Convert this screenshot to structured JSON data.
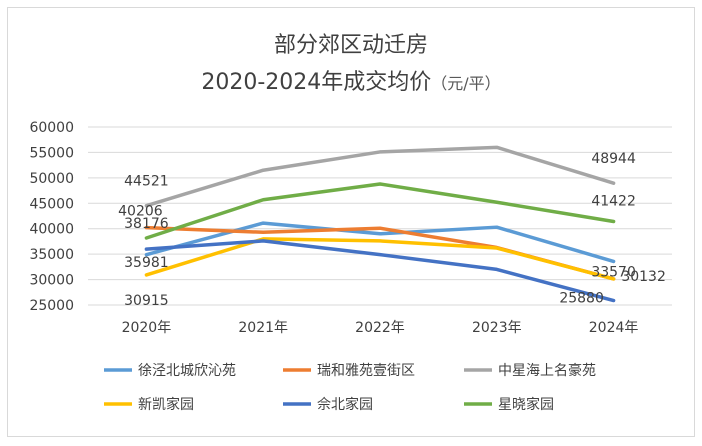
{
  "chart_data": {
    "type": "line",
    "title_line1": "部分郊区动迁房",
    "title_line2": "2020-2024年成交均价",
    "title_unit": "（元/平）",
    "categories": [
      "2020年",
      "2021年",
      "2022年",
      "2023年",
      "2024年"
    ],
    "ylim": [
      25000,
      60000
    ],
    "yticks": [
      25000,
      30000,
      35000,
      40000,
      45000,
      50000,
      55000,
      60000
    ],
    "grid": true,
    "legend_position": "bottom",
    "series": [
      {
        "name": "徐泾北城欣沁苑",
        "color": "#5b9bd5",
        "values": [
          34900,
          41100,
          39000,
          40300,
          33570
        ]
      },
      {
        "name": "瑞和雅苑壹街区",
        "color": "#ed7d31",
        "values": [
          40206,
          39300,
          40100,
          36300,
          30132
        ]
      },
      {
        "name": "中星海上名豪苑",
        "color": "#a5a5a5",
        "values": [
          44521,
          51500,
          55100,
          56000,
          48944
        ]
      },
      {
        "name": "新凯家园",
        "color": "#ffc000",
        "values": [
          30915,
          38000,
          37600,
          36200,
          30132
        ]
      },
      {
        "name": "佘北家园",
        "color": "#4472c4",
        "values": [
          35981,
          37600,
          34900,
          32000,
          25880
        ]
      },
      {
        "name": "星晓家园",
        "color": "#70ad47",
        "values": [
          38176,
          45700,
          48800,
          45200,
          41422
        ]
      }
    ],
    "data_labels": [
      {
        "text": "44521",
        "series": 2,
        "index": 0
      },
      {
        "text": "40206",
        "series": 1,
        "index": 0
      },
      {
        "text": "38176",
        "series": 5,
        "index": 0
      },
      {
        "text": "35981",
        "series": 4,
        "index": 0
      },
      {
        "text": "30915",
        "series": 3,
        "index": 0
      },
      {
        "text": "48944",
        "series": 2,
        "index": 4
      },
      {
        "text": "41422",
        "series": 5,
        "index": 4
      },
      {
        "text": "33570",
        "series": 0,
        "index": 4
      },
      {
        "text": "30132",
        "series": 1,
        "index": 4
      },
      {
        "text": "25880",
        "series": 4,
        "index": 4
      }
    ]
  }
}
